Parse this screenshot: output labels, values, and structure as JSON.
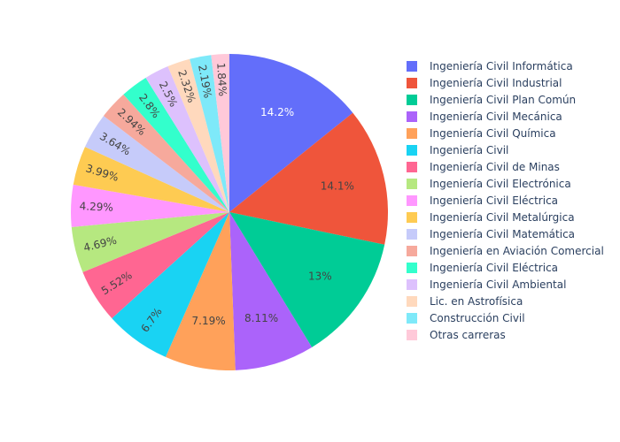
{
  "chart_data": {
    "type": "pie",
    "title": "",
    "legend_position": "right",
    "label_format": "percent",
    "slices": [
      {
        "label": "Ingeniería Civil Informática",
        "value": 14.2,
        "display": "14.2%",
        "color": "#636efa",
        "text_color": "#ffffff"
      },
      {
        "label": "Ingeniería Civil Industrial",
        "value": 14.1,
        "display": "14.1%",
        "color": "#EF553B",
        "text_color": "#444444"
      },
      {
        "label": "Ingeniería Civil Plan Común",
        "value": 13,
        "display": "13%",
        "color": "#00cc96",
        "text_color": "#444444"
      },
      {
        "label": "Ingeniería Civil Mecánica",
        "value": 8.11,
        "display": "8.11%",
        "color": "#ab63fa",
        "text_color": "#444444"
      },
      {
        "label": "Ingeniería Civil Química",
        "value": 7.19,
        "display": "7.19%",
        "color": "#FFA15A",
        "text_color": "#444444"
      },
      {
        "label": "Ingeniería Civil",
        "value": 6.7,
        "display": "6.7%",
        "color": "#19d3f3",
        "text_color": "#444444"
      },
      {
        "label": "Ingeniería Civil de Minas",
        "value": 5.52,
        "display": "5.52%",
        "color": "#FF6692",
        "text_color": "#444444"
      },
      {
        "label": "Ingeniería Civil Electrónica",
        "value": 4.69,
        "display": "4.69%",
        "color": "#B6E880",
        "text_color": "#444444"
      },
      {
        "label": "Ingeniería Civil Eléctrica",
        "value": 4.29,
        "display": "4.29%",
        "color": "#FF97FF",
        "text_color": "#444444"
      },
      {
        "label": "Ingeniería Civil Metalúrgica",
        "value": 3.99,
        "display": "3.99%",
        "color": "#FECB52",
        "text_color": "#444444"
      },
      {
        "label": "Ingeniería Civil Matemática",
        "value": 3.64,
        "display": "3.64%",
        "color": "#c6cbfa",
        "text_color": "#444444"
      },
      {
        "label": "Ingeniería en Aviación Comercial",
        "value": 2.94,
        "display": "2.94%",
        "color": "#f6a99c",
        "text_color": "#444444"
      },
      {
        "label": "Ingeniería Civil  Eléctrica",
        "value": 2.8,
        "display": "2.8%",
        "color": "#33ffcc",
        "text_color": "#444444"
      },
      {
        "label": "Ingeniería Civil Ambiental",
        "value": 2.5,
        "display": "2.5%",
        "color": "#ddc1fd",
        "text_color": "#444444"
      },
      {
        "label": "Lic. en Astrofísica",
        "value": 2.32,
        "display": "2.32%",
        "color": "#ffd9bd",
        "text_color": "#444444"
      },
      {
        "label": "Construcción Civil",
        "value": 2.19,
        "display": "2.19%",
        "color": "#7ee9f9",
        "text_color": "#444444"
      },
      {
        "label": "Otras carreras",
        "value": 1.84,
        "display": "1.84%",
        "color": "#ffc9d9",
        "text_color": "#444444"
      }
    ]
  }
}
